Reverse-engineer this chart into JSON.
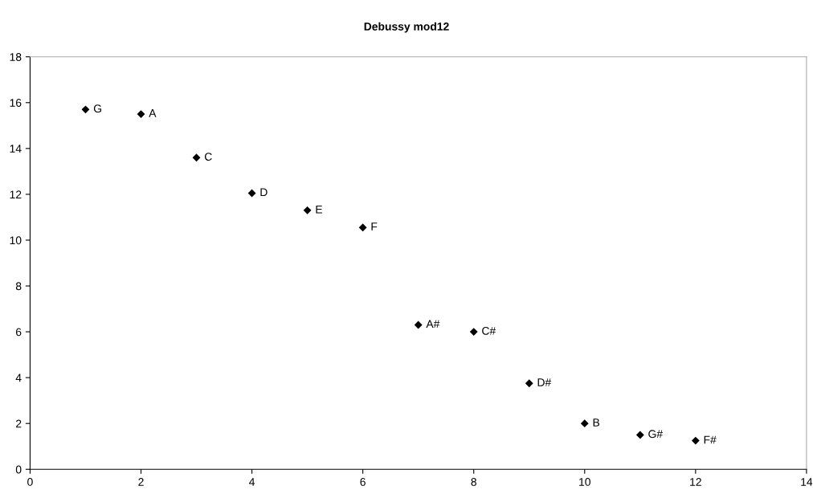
{
  "chart_data": {
    "type": "scatter",
    "title": "Debussy mod12",
    "x": [
      1,
      2,
      3,
      4,
      5,
      6,
      7,
      8,
      9,
      10,
      11,
      12
    ],
    "values": [
      15.7,
      15.5,
      13.6,
      12.05,
      11.3,
      10.55,
      6.3,
      6.0,
      3.75,
      2.0,
      1.5,
      1.25
    ],
    "color": "#000000",
    "marker": "diamond",
    "annotations": [
      {
        "text": "G",
        "x": 1,
        "y": 15.7
      },
      {
        "text": "A",
        "x": 2,
        "y": 15.5
      },
      {
        "text": "C",
        "x": 3,
        "y": 13.6
      },
      {
        "text": "D",
        "x": 4,
        "y": 12.05
      },
      {
        "text": "E",
        "x": 5,
        "y": 11.3
      },
      {
        "text": "F",
        "x": 6,
        "y": 10.55
      },
      {
        "text": "A#",
        "x": 7,
        "y": 6.3
      },
      {
        "text": "C#",
        "x": 8,
        "y": 6.0
      },
      {
        "text": "D#",
        "x": 9,
        "y": 3.75
      },
      {
        "text": "B",
        "x": 10,
        "y": 2.0
      },
      {
        "text": "G#",
        "x": 11,
        "y": 1.5
      },
      {
        "text": "F#",
        "x": 12,
        "y": 1.25
      }
    ],
    "xlim": [
      0,
      14
    ],
    "xticks": [
      0,
      2,
      4,
      6,
      8,
      10,
      12,
      14
    ],
    "ylim": [
      0,
      18
    ],
    "yticks": [
      0,
      2,
      4,
      6,
      8,
      10,
      12,
      14,
      16,
      18
    ],
    "grid": false,
    "legend": false
  }
}
